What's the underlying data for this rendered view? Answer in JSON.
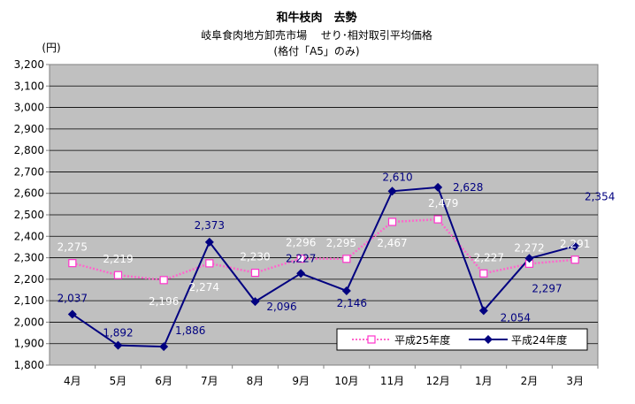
{
  "chart_data": {
    "type": "line",
    "title": "和牛枝肉　去勢",
    "subtitle_1": "岐阜食肉地方卸売市場　 せり･相対取引平均価格",
    "subtitle_2": "(格付「A5」のみ)",
    "ylabel": "(円)",
    "ylim": [
      1800,
      3200
    ],
    "ytick_step": 100,
    "yticks": [
      "1,800",
      "1,900",
      "2,000",
      "2,100",
      "2,200",
      "2,300",
      "2,400",
      "2,500",
      "2,600",
      "2,700",
      "2,800",
      "2,900",
      "3,000",
      "3,100",
      "3,200"
    ],
    "categories": [
      "4月",
      "5月",
      "6月",
      "7月",
      "8月",
      "9月",
      "10月",
      "11月",
      "12月",
      "1月",
      "2月",
      "3月"
    ],
    "grid": true,
    "legend_position": "bottom-right",
    "plot_background": "#c0c0c0",
    "series": [
      {
        "name": "平成25年度",
        "values": [
          2275,
          2219,
          2196,
          2274,
          2230,
          2296,
          2295,
          2467,
          2479,
          2227,
          2272,
          2291
        ],
        "labels": [
          "2,275",
          "2,219",
          "2,196",
          "2,274",
          "2,230",
          "2,296",
          "2,295",
          "2,467",
          "2,479",
          "2,227",
          "2,272",
          "2,291"
        ],
        "line_color": "#ff66cc",
        "marker": "square",
        "marker_fill": "#ffffff",
        "label_color": "#ffffff"
      },
      {
        "name": "平成24年度",
        "values": [
          2037,
          1892,
          1886,
          2373,
          2096,
          2227,
          2146,
          2610,
          2628,
          2054,
          2297,
          2354
        ],
        "labels": [
          "2,037",
          "1,892",
          "1,886",
          "2,373",
          "2,096",
          "2,227",
          "2,146",
          "2,610",
          "2,628",
          "2,054",
          "2,297",
          "2,354"
        ],
        "line_color": "#000080",
        "marker": "diamond",
        "marker_fill": "#000080",
        "label_color": "#000080"
      }
    ]
  }
}
